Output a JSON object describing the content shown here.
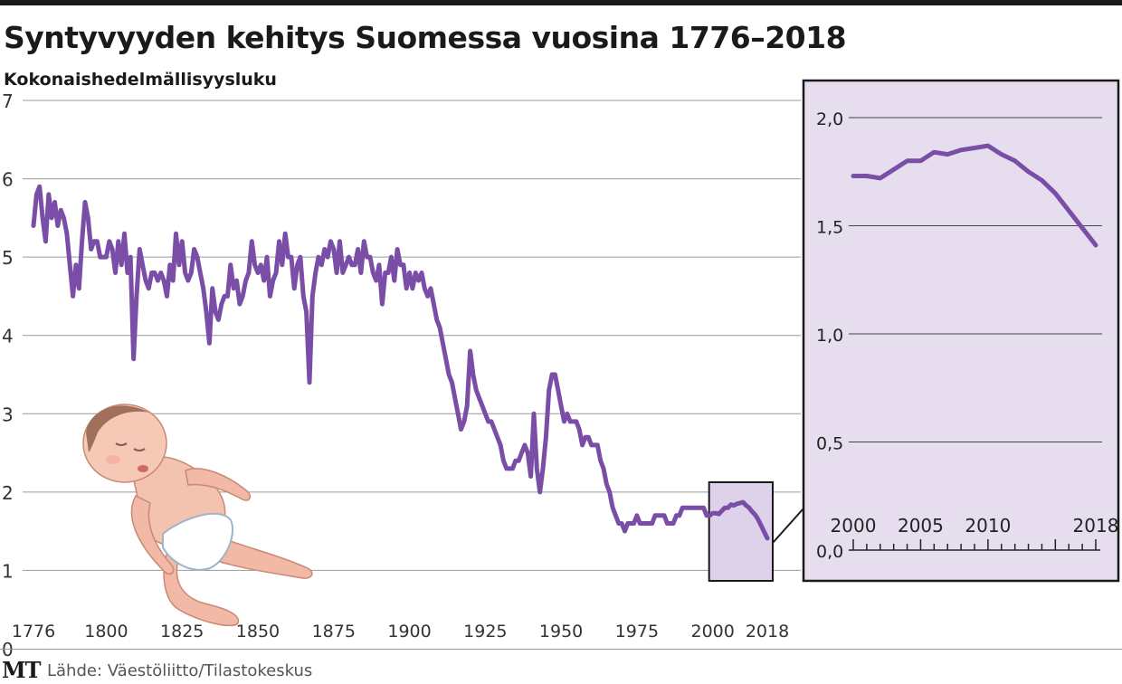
{
  "chart_data": [
    {
      "type": "line",
      "title": "Syntyvyyden kehitys Suomessa vuosina 1776–2018",
      "subtitle": "",
      "ylabel": "Kokonaishedelmällisyysluku",
      "xlabel": "",
      "ylim": [
        0,
        7
      ],
      "yticks": [
        "0",
        "1",
        "2",
        "3",
        "4",
        "5",
        "6",
        "7"
      ],
      "xticks": [
        "1776",
        "1800",
        "1825",
        "1850",
        "1875",
        "1900",
        "1925",
        "1950",
        "1975",
        "2000",
        "2018"
      ],
      "grid": true,
      "series": [
        {
          "name": "",
          "color": "#7a4ea6",
          "points": [
            [
              1776,
              5.4
            ],
            [
              1777,
              5.8
            ],
            [
              1778,
              5.9
            ],
            [
              1779,
              5.5
            ],
            [
              1780,
              5.2
            ],
            [
              1781,
              5.8
            ],
            [
              1782,
              5.5
            ],
            [
              1783,
              5.7
            ],
            [
              1784,
              5.4
            ],
            [
              1785,
              5.6
            ],
            [
              1786,
              5.5
            ],
            [
              1787,
              5.3
            ],
            [
              1788,
              4.9
            ],
            [
              1789,
              4.5
            ],
            [
              1790,
              4.9
            ],
            [
              1791,
              4.6
            ],
            [
              1792,
              5.2
            ],
            [
              1793,
              5.7
            ],
            [
              1794,
              5.5
            ],
            [
              1795,
              5.1
            ],
            [
              1796,
              5.2
            ],
            [
              1797,
              5.2
            ],
            [
              1798,
              5.0
            ],
            [
              1799,
              5.0
            ],
            [
              1800,
              5.0
            ],
            [
              1801,
              5.2
            ],
            [
              1802,
              5.1
            ],
            [
              1803,
              4.8
            ],
            [
              1804,
              5.2
            ],
            [
              1805,
              4.9
            ],
            [
              1806,
              5.3
            ],
            [
              1807,
              4.8
            ],
            [
              1808,
              5.0
            ],
            [
              1809,
              3.7
            ],
            [
              1810,
              4.5
            ],
            [
              1811,
              5.1
            ],
            [
              1812,
              4.9
            ],
            [
              1813,
              4.7
            ],
            [
              1814,
              4.6
            ],
            [
              1815,
              4.8
            ],
            [
              1816,
              4.8
            ],
            [
              1817,
              4.7
            ],
            [
              1818,
              4.8
            ],
            [
              1819,
              4.7
            ],
            [
              1820,
              4.5
            ],
            [
              1821,
              4.9
            ],
            [
              1822,
              4.7
            ],
            [
              1823,
              5.3
            ],
            [
              1824,
              4.9
            ],
            [
              1825,
              5.2
            ],
            [
              1826,
              4.8
            ],
            [
              1827,
              4.7
            ],
            [
              1828,
              4.8
            ],
            [
              1829,
              5.1
            ],
            [
              1830,
              5.0
            ],
            [
              1831,
              4.8
            ],
            [
              1832,
              4.6
            ],
            [
              1833,
              4.3
            ],
            [
              1834,
              3.9
            ],
            [
              1835,
              4.6
            ],
            [
              1836,
              4.3
            ],
            [
              1837,
              4.2
            ],
            [
              1838,
              4.4
            ],
            [
              1839,
              4.5
            ],
            [
              1840,
              4.5
            ],
            [
              1841,
              4.9
            ],
            [
              1842,
              4.6
            ],
            [
              1843,
              4.7
            ],
            [
              1844,
              4.4
            ],
            [
              1845,
              4.5
            ],
            [
              1846,
              4.7
            ],
            [
              1847,
              4.8
            ],
            [
              1848,
              5.2
            ],
            [
              1849,
              4.9
            ],
            [
              1850,
              4.8
            ],
            [
              1851,
              4.9
            ],
            [
              1852,
              4.7
            ],
            [
              1853,
              5.0
            ],
            [
              1854,
              4.5
            ],
            [
              1855,
              4.7
            ],
            [
              1856,
              4.8
            ],
            [
              1857,
              5.2
            ],
            [
              1858,
              4.9
            ],
            [
              1859,
              5.3
            ],
            [
              1860,
              5.0
            ],
            [
              1861,
              5.0
            ],
            [
              1862,
              4.6
            ],
            [
              1863,
              4.9
            ],
            [
              1864,
              5.0
            ],
            [
              1865,
              4.5
            ],
            [
              1866,
              4.3
            ],
            [
              1867,
              3.4
            ],
            [
              1868,
              4.5
            ],
            [
              1869,
              4.8
            ],
            [
              1870,
              5.0
            ],
            [
              1871,
              4.9
            ],
            [
              1872,
              5.1
            ],
            [
              1873,
              5.0
            ],
            [
              1874,
              5.2
            ],
            [
              1875,
              5.1
            ],
            [
              1876,
              4.8
            ],
            [
              1877,
              5.2
            ],
            [
              1878,
              4.8
            ],
            [
              1879,
              4.9
            ],
            [
              1880,
              5.0
            ],
            [
              1881,
              4.9
            ],
            [
              1882,
              4.9
            ],
            [
              1883,
              5.1
            ],
            [
              1884,
              4.8
            ],
            [
              1885,
              5.2
            ],
            [
              1886,
              5.0
            ],
            [
              1887,
              5.0
            ],
            [
              1888,
              4.8
            ],
            [
              1889,
              4.7
            ],
            [
              1890,
              4.9
            ],
            [
              1891,
              4.4
            ],
            [
              1892,
              4.8
            ],
            [
              1893,
              4.8
            ],
            [
              1894,
              5.0
            ],
            [
              1895,
              4.7
            ],
            [
              1896,
              5.1
            ],
            [
              1897,
              4.9
            ],
            [
              1898,
              4.9
            ],
            [
              1899,
              4.6
            ],
            [
              1900,
              4.8
            ],
            [
              1901,
              4.6
            ],
            [
              1902,
              4.8
            ],
            [
              1903,
              4.7
            ],
            [
              1904,
              4.8
            ],
            [
              1905,
              4.6
            ],
            [
              1906,
              4.5
            ],
            [
              1907,
              4.6
            ],
            [
              1908,
              4.4
            ],
            [
              1909,
              4.2
            ],
            [
              1910,
              4.1
            ],
            [
              1911,
              3.9
            ],
            [
              1912,
              3.7
            ],
            [
              1913,
              3.5
            ],
            [
              1914,
              3.4
            ],
            [
              1915,
              3.2
            ],
            [
              1916,
              3.0
            ],
            [
              1917,
              2.8
            ],
            [
              1918,
              2.9
            ],
            [
              1919,
              3.1
            ],
            [
              1920,
              3.8
            ],
            [
              1921,
              3.5
            ],
            [
              1922,
              3.3
            ],
            [
              1923,
              3.2
            ],
            [
              1924,
              3.1
            ],
            [
              1925,
              3.0
            ],
            [
              1926,
              2.9
            ],
            [
              1927,
              2.9
            ],
            [
              1928,
              2.8
            ],
            [
              1929,
              2.7
            ],
            [
              1930,
              2.6
            ],
            [
              1931,
              2.4
            ],
            [
              1932,
              2.3
            ],
            [
              1933,
              2.3
            ],
            [
              1934,
              2.3
            ],
            [
              1935,
              2.4
            ],
            [
              1936,
              2.4
            ],
            [
              1937,
              2.5
            ],
            [
              1938,
              2.6
            ],
            [
              1939,
              2.5
            ],
            [
              1940,
              2.2
            ],
            [
              1941,
              3.0
            ],
            [
              1942,
              2.3
            ],
            [
              1943,
              2.0
            ],
            [
              1944,
              2.3
            ],
            [
              1945,
              2.7
            ],
            [
              1946,
              3.3
            ],
            [
              1947,
              3.5
            ],
            [
              1948,
              3.5
            ],
            [
              1949,
              3.3
            ],
            [
              1950,
              3.1
            ],
            [
              1951,
              2.9
            ],
            [
              1952,
              3.0
            ],
            [
              1953,
              2.9
            ],
            [
              1954,
              2.9
            ],
            [
              1955,
              2.9
            ],
            [
              1956,
              2.8
            ],
            [
              1957,
              2.6
            ],
            [
              1958,
              2.7
            ],
            [
              1959,
              2.7
            ],
            [
              1960,
              2.6
            ],
            [
              1961,
              2.6
            ],
            [
              1962,
              2.6
            ],
            [
              1963,
              2.4
            ],
            [
              1964,
              2.3
            ],
            [
              1965,
              2.1
            ],
            [
              1966,
              2.0
            ],
            [
              1967,
              1.8
            ],
            [
              1968,
              1.7
            ],
            [
              1969,
              1.6
            ],
            [
              1970,
              1.6
            ],
            [
              1971,
              1.5
            ],
            [
              1972,
              1.6
            ],
            [
              1973,
              1.6
            ],
            [
              1974,
              1.6
            ],
            [
              1975,
              1.7
            ],
            [
              1976,
              1.6
            ],
            [
              1977,
              1.6
            ],
            [
              1978,
              1.6
            ],
            [
              1979,
              1.6
            ],
            [
              1980,
              1.6
            ],
            [
              1981,
              1.7
            ],
            [
              1982,
              1.7
            ],
            [
              1983,
              1.7
            ],
            [
              1984,
              1.7
            ],
            [
              1985,
              1.6
            ],
            [
              1986,
              1.6
            ],
            [
              1987,
              1.6
            ],
            [
              1988,
              1.7
            ],
            [
              1989,
              1.7
            ],
            [
              1990,
              1.8
            ],
            [
              1991,
              1.8
            ],
            [
              1992,
              1.8
            ],
            [
              1993,
              1.8
            ],
            [
              1994,
              1.8
            ],
            [
              1995,
              1.8
            ],
            [
              1996,
              1.8
            ],
            [
              1997,
              1.8
            ],
            [
              1998,
              1.7
            ],
            [
              1999,
              1.7
            ],
            [
              2000,
              1.73
            ],
            [
              2001,
              1.73
            ],
            [
              2002,
              1.72
            ],
            [
              2003,
              1.76
            ],
            [
              2004,
              1.8
            ],
            [
              2005,
              1.8
            ],
            [
              2006,
              1.84
            ],
            [
              2007,
              1.83
            ],
            [
              2008,
              1.85
            ],
            [
              2009,
              1.86
            ],
            [
              2010,
              1.87
            ],
            [
              2011,
              1.83
            ],
            [
              2012,
              1.8
            ],
            [
              2013,
              1.75
            ],
            [
              2014,
              1.71
            ],
            [
              2015,
              1.65
            ],
            [
              2016,
              1.57
            ],
            [
              2017,
              1.49
            ],
            [
              2018,
              1.41
            ]
          ]
        }
      ],
      "highlight_box": {
        "from": 2000,
        "to": 2018,
        "color": "#ded2ea"
      }
    },
    {
      "type": "line",
      "title": "",
      "ylim": [
        0,
        2.2
      ],
      "yticks": [
        "0,0",
        "0,5",
        "1,0",
        "1,5",
        "2,0"
      ],
      "xticks": [
        "2000",
        "2005",
        "2010",
        "2018"
      ],
      "xlim": [
        2000,
        2018
      ],
      "grid": true,
      "background": "#e6deee",
      "series": [
        {
          "name": "",
          "color": "#7a4ea6",
          "points": [
            [
              2000,
              1.73
            ],
            [
              2001,
              1.73
            ],
            [
              2002,
              1.72
            ],
            [
              2003,
              1.76
            ],
            [
              2004,
              1.8
            ],
            [
              2005,
              1.8
            ],
            [
              2006,
              1.84
            ],
            [
              2007,
              1.83
            ],
            [
              2008,
              1.85
            ],
            [
              2009,
              1.86
            ],
            [
              2010,
              1.87
            ],
            [
              2011,
              1.83
            ],
            [
              2012,
              1.8
            ],
            [
              2013,
              1.75
            ],
            [
              2014,
              1.71
            ],
            [
              2015,
              1.65
            ],
            [
              2016,
              1.57
            ],
            [
              2017,
              1.49
            ],
            [
              2018,
              1.41
            ]
          ]
        }
      ]
    }
  ],
  "footer": {
    "logo": "MT",
    "source": "Lähde: Väestöliitto/Tilastokeskus"
  },
  "illustration": {
    "icon": "baby-illustration"
  }
}
